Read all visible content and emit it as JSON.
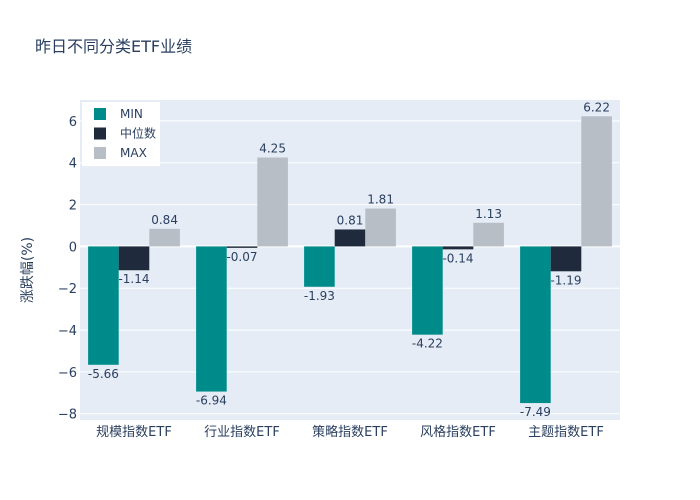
{
  "chart_data": {
    "type": "bar",
    "title": "昨日不同分类ETF业绩",
    "xlabel": "",
    "ylabel": "涨跌幅(%)",
    "ylim": [
      -8.3,
      7.0
    ],
    "yticks": [
      -8,
      -6,
      -4,
      -2,
      0,
      2,
      4,
      6
    ],
    "ytick_labels": [
      "−8",
      "−6",
      "−4",
      "−2",
      "0",
      "2",
      "4",
      "6"
    ],
    "grid": true,
    "legend_position": "top-left",
    "categories": [
      "规模指数ETF",
      "行业指数ETF",
      "策略指数ETF",
      "风格指数ETF",
      "主题指数ETF"
    ],
    "series": [
      {
        "name": "MIN",
        "color": "#008b8b",
        "values": [
          -5.66,
          -6.94,
          -1.93,
          -4.22,
          -7.49
        ]
      },
      {
        "name": "中位数",
        "color": "#1f2a3c",
        "values": [
          -1.14,
          -0.07,
          0.81,
          -0.14,
          -1.19
        ]
      },
      {
        "name": "MAX",
        "color": "#b8bec6",
        "values": [
          0.84,
          4.25,
          1.81,
          1.13,
          6.22
        ]
      }
    ],
    "plot_bg": "#e5ecf6"
  }
}
